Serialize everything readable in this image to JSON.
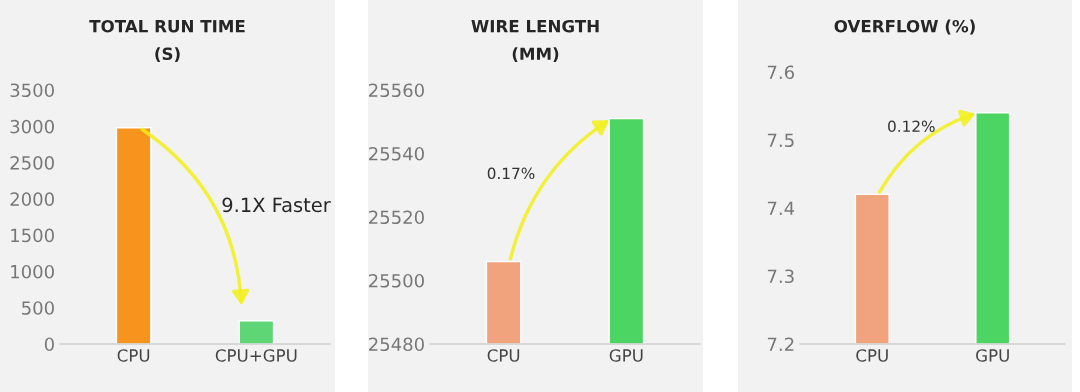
{
  "chart_data": [
    {
      "type": "bar",
      "title": "TOTAL RUN TIME\n(S)",
      "categories": [
        "CPU",
        "CPU+GPU"
      ],
      "values": [
        2980,
        320
      ],
      "colors": [
        "#f7941d",
        "#5ed676"
      ],
      "ylim": [
        0,
        3500
      ],
      "yticks": [
        0,
        500,
        1000,
        1500,
        2000,
        2500,
        3000,
        3500
      ],
      "annotations": [
        "9.1X Faster"
      ]
    },
    {
      "type": "bar",
      "title": "WIRE LENGTH\n(MM)",
      "categories": [
        "CPU",
        "GPU"
      ],
      "values": [
        25506,
        25551
      ],
      "colors": [
        "#f0a37c",
        "#4cd562"
      ],
      "ylim": [
        25480,
        25560
      ],
      "yticks": [
        25480,
        25500,
        25520,
        25540,
        25560
      ],
      "annotations": [
        "0.17%"
      ]
    },
    {
      "type": "bar",
      "title": "OVERFLOW (%)",
      "categories": [
        "CPU",
        "GPU"
      ],
      "values": [
        7.42,
        7.54
      ],
      "colors": [
        "#f0a37c",
        "#4cd562"
      ],
      "ylim": [
        7.2,
        7.6
      ],
      "yticks": [
        7.2,
        7.3,
        7.4,
        7.5,
        7.6
      ],
      "annotations": [
        "0.12%"
      ]
    }
  ]
}
